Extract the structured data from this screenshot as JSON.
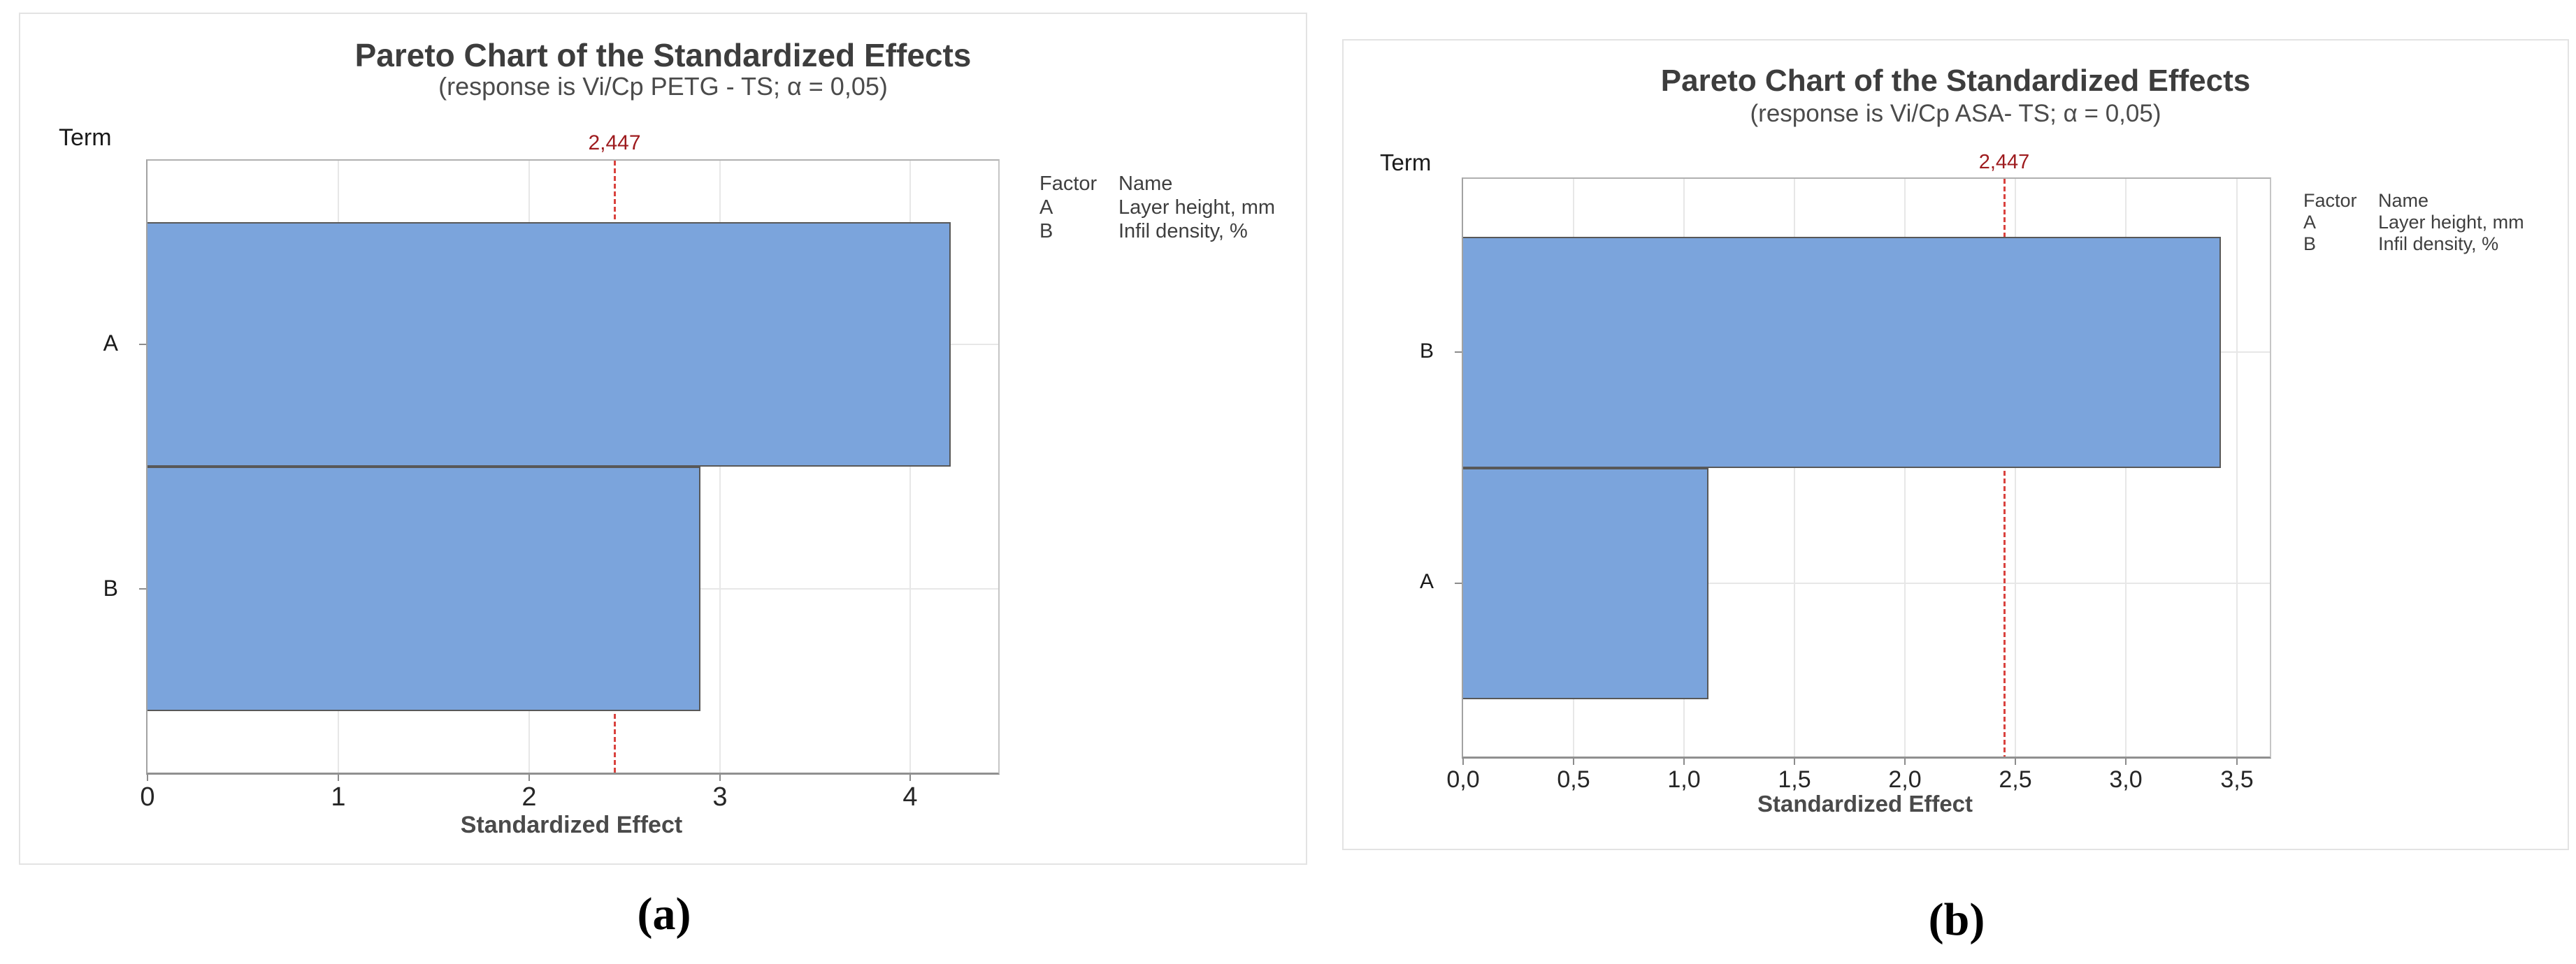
{
  "colors": {
    "bar_fill": "#7ba4dc",
    "bar_edge": "#585858",
    "ref_line": "#d9423e",
    "ref_label_text": "#9e1b1e",
    "grid": "#e7e7e7",
    "axis": "#8c8c8c"
  },
  "chart_data": [
    {
      "type": "bar",
      "orientation": "horizontal",
      "title": "Pareto Chart of the Standardized Effects",
      "subtitle": "(response is Vi/Cp PETG - TS; α = 0,05)",
      "term_label": "Term",
      "xlabel": "Standardized Effect",
      "categories": [
        "A",
        "B"
      ],
      "values": [
        4.21,
        2.9
      ],
      "xlim": [
        0,
        4.46
      ],
      "xticks": {
        "values": [
          0,
          1,
          2,
          3,
          4
        ],
        "labels": [
          "0",
          "1",
          "2",
          "3",
          "4"
        ]
      },
      "ref_line": {
        "value": 2.447,
        "label": "2,447"
      },
      "grid": "on",
      "legend": {
        "headers": [
          "Factor",
          "Name"
        ],
        "rows": [
          [
            "A",
            "Layer height, mm"
          ],
          [
            "B",
            "Infil density, %"
          ]
        ]
      },
      "caption": "(a)"
    },
    {
      "type": "bar",
      "orientation": "horizontal",
      "title": "Pareto Chart of the Standardized Effects",
      "subtitle": "(response is Vi/Cp ASA- TS; α = 0,05)",
      "term_label": "Term",
      "xlabel": "Standardized Effect",
      "categories": [
        "B",
        "A"
      ],
      "values": [
        3.43,
        1.11
      ],
      "xlim": [
        0,
        3.65
      ],
      "xticks": {
        "values": [
          0,
          0.5,
          1,
          1.5,
          2,
          2.5,
          3,
          3.5
        ],
        "labels": [
          "0,0",
          "0,5",
          "1,0",
          "1,5",
          "2,0",
          "2,5",
          "3,0",
          "3,5"
        ]
      },
      "ref_line": {
        "value": 2.447,
        "label": "2,447"
      },
      "grid": "on",
      "legend": {
        "headers": [
          "Factor",
          "Name"
        ],
        "rows": [
          [
            "A",
            "Layer height, mm"
          ],
          [
            "B",
            "Infil density, %"
          ]
        ]
      },
      "caption": "(b)"
    }
  ]
}
